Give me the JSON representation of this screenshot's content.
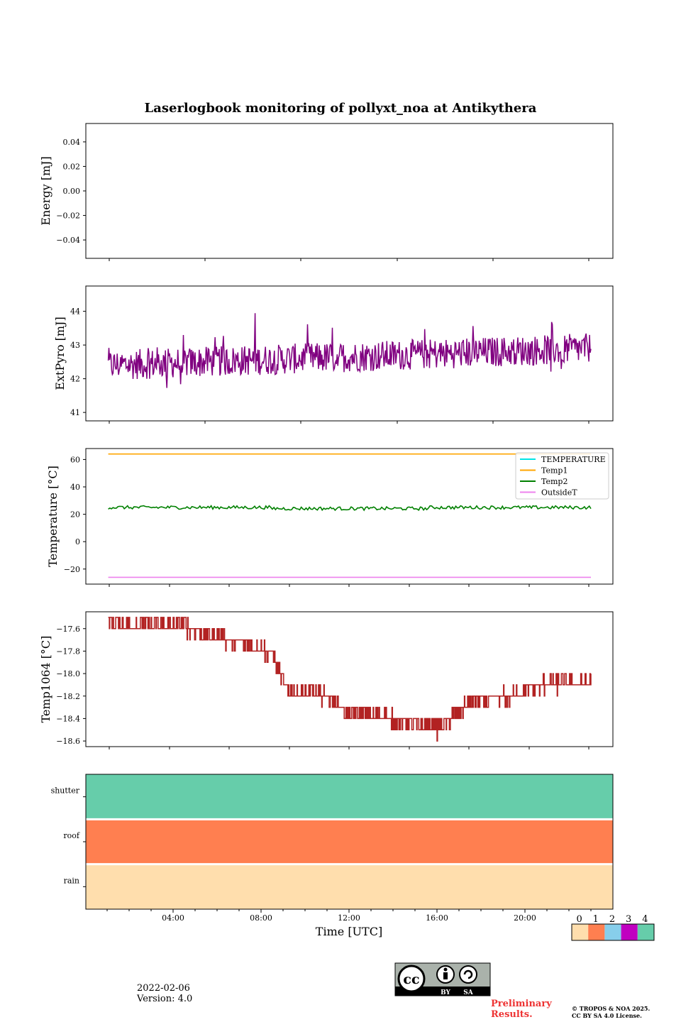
{
  "page": {
    "title": "Laserlogbook monitoring of pollyxt_noa at Antikythera",
    "date": "2022-02-06",
    "version": "Version: 4.0",
    "preliminary": "Preliminary\nResults.",
    "copyright_line1": "© TROPOS & NOA 2025.",
    "copyright_line2": "CC BY SA 4.0 License.",
    "license_badge": {
      "cc": "cc",
      "by": "BY",
      "sa": "SA"
    }
  },
  "chart_data": [
    {
      "id": "energy",
      "type": "line",
      "ylabel": "Energy [mJ]",
      "ylim": [
        -0.055,
        0.055
      ],
      "yticks": [
        0.04,
        0.02,
        0.0,
        -0.02,
        -0.04
      ],
      "ytick_labels": [
        "0.04",
        "0.02",
        "0.00",
        "−0.02",
        "−0.04"
      ],
      "series": []
    },
    {
      "id": "extpyro",
      "type": "line",
      "ylabel": "ExtPyro [mJ]",
      "ylim": [
        40.75,
        44.75
      ],
      "yticks": [
        44,
        43,
        42,
        41
      ],
      "ytick_labels": [
        "44",
        "43",
        "42",
        "41"
      ],
      "color": "#800080",
      "trend": {
        "start": 42.4,
        "end": 42.9,
        "noise": 0.45,
        "min": 40.95,
        "max": 44.7
      }
    },
    {
      "id": "temperature",
      "type": "line",
      "ylabel": "Temperature [°C]",
      "ylim": [
        -31,
        68
      ],
      "yticks": [
        60,
        40,
        20,
        0,
        -20
      ],
      "ytick_labels": [
        "60",
        "40",
        "20",
        "0",
        "−20"
      ],
      "legend": "top-right",
      "series": [
        {
          "name": "TEMPERATURE",
          "color": "#00e5e5",
          "value": null
        },
        {
          "name": "Temp1",
          "color": "#ffa500",
          "value": 64
        },
        {
          "name": "Temp2",
          "color": "#008000",
          "value": 25
        },
        {
          "name": "OutsideT",
          "color": "#ee82ee",
          "value": -26
        }
      ]
    },
    {
      "id": "temp1064",
      "type": "line",
      "ylabel": "Temp1064 [°C]",
      "ylim": [
        -18.65,
        -17.45
      ],
      "yticks": [
        -17.6,
        -17.8,
        -18.0,
        -18.2,
        -18.4,
        -18.6
      ],
      "ytick_labels": [
        "−17.6",
        "−17.8",
        "−18.0",
        "−18.2",
        "−18.4",
        "−18.6"
      ],
      "color": "#b22222",
      "profile_time_h": [
        1,
        4.5,
        5.5,
        7.5,
        8.5,
        9.2,
        11,
        12,
        14,
        15,
        16,
        17.5,
        19.5,
        20.5,
        23
      ],
      "profile_value": [
        -17.55,
        -17.58,
        -17.65,
        -17.75,
        -17.82,
        -18.15,
        -18.2,
        -18.35,
        -18.4,
        -18.45,
        -18.5,
        -18.25,
        -18.2,
        -18.1,
        -18.08
      ]
    },
    {
      "id": "status",
      "type": "heatmap",
      "categories": [
        "shutter",
        "roof",
        "rain"
      ],
      "values": [
        4,
        1,
        0
      ],
      "colorbar": {
        "labels": [
          "0",
          "1",
          "2",
          "3",
          "4"
        ],
        "colors": [
          "#ffdead",
          "#ff7f50",
          "#87ceeb",
          "#c000c0",
          "#66cdaa"
        ]
      }
    }
  ],
  "xaxis": {
    "label": "Time [UTC]",
    "range_h": [
      0,
      24
    ],
    "ticks_h": [
      4,
      8,
      12,
      16,
      20
    ],
    "tick_labels": [
      "04:00",
      "08:00",
      "12:00",
      "16:00",
      "20:00"
    ],
    "data_range_h": [
      1.05,
      23.0
    ]
  }
}
